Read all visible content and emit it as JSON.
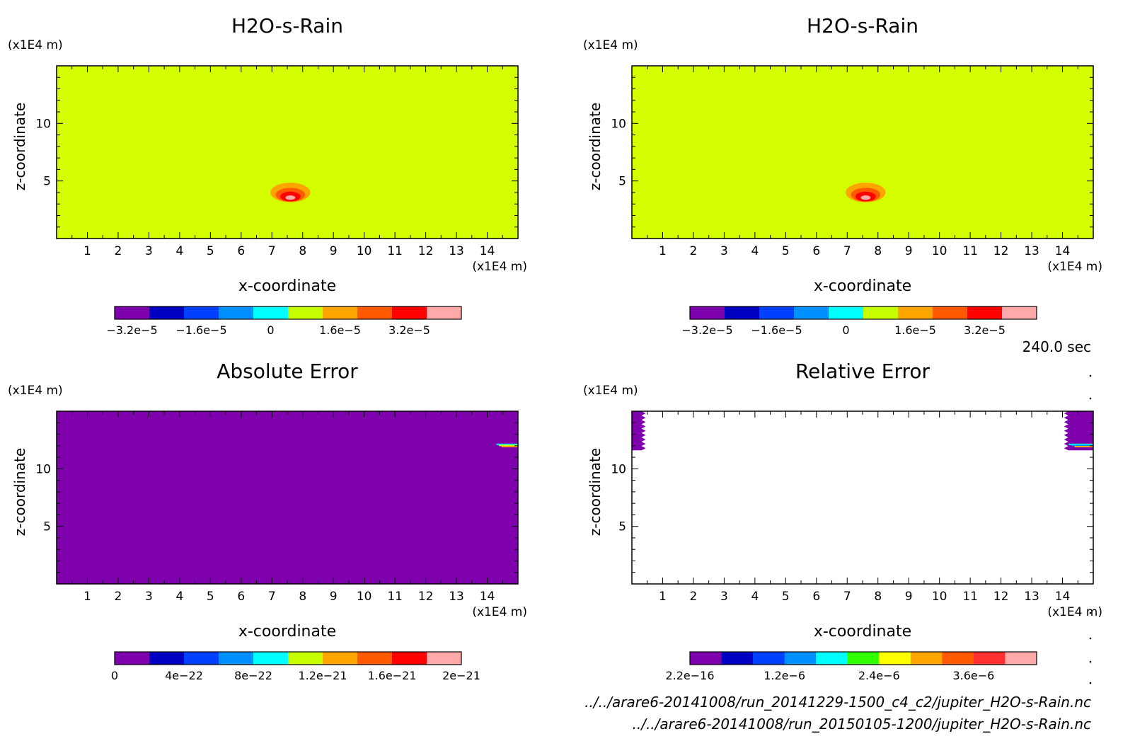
{
  "time_label": "240.0 sec",
  "footer": {
    "file1": "../../arare6-20141008/run_20141229-1500_c4_c2/jupiter_H2O-s-Rain.nc",
    "file2": "../../arare6-20141008/run_20150105-1200/jupiter_H2O-s-Rain.nc"
  },
  "chart_data": [
    {
      "type": "heatmap",
      "title": "H2O-s-Rain",
      "xlabel": "x-coordinate",
      "ylabel": "z-coordinate",
      "x_unit": "(x1E4 m)",
      "y_unit": "(x1E4 m)",
      "xlim": [
        0,
        15
      ],
      "ylim": [
        0,
        15
      ],
      "xticks": [
        "1",
        "2",
        "3",
        "4",
        "5",
        "6",
        "7",
        "8",
        "9",
        "10",
        "11",
        "12",
        "13",
        "14"
      ],
      "yticks": [
        "5",
        "10"
      ],
      "background": "#d4ff00",
      "features": [
        {
          "shape": "blob",
          "cx": 7.6,
          "cz": 4.0,
          "rx": 0.65,
          "rz": 0.85,
          "color": "#ffa500"
        },
        {
          "shape": "blob",
          "cx": 7.6,
          "cz": 3.8,
          "rx": 0.48,
          "rz": 0.6,
          "color": "#ff5a00"
        },
        {
          "shape": "blob",
          "cx": 7.6,
          "cz": 3.65,
          "rx": 0.33,
          "rz": 0.42,
          "color": "#ff0000"
        },
        {
          "shape": "blob",
          "cx": 7.6,
          "cz": 3.55,
          "rx": 0.16,
          "rz": 0.2,
          "color": "#ffaaaa"
        }
      ],
      "colorbar": {
        "colors": [
          "#7f00ad",
          "#0000c0",
          "#0040ff",
          "#0090ff",
          "#00ffff",
          "#c8ff00",
          "#ffa500",
          "#ff5a00",
          "#ff0000",
          "#ffaaaa"
        ],
        "labels": [
          "−3.2e−5",
          "−1.6e−5",
          "0",
          "1.6e−5",
          "3.2e−5"
        ],
        "label_pos": [
          0.5,
          2.5,
          4.5,
          6.5,
          8.5
        ]
      }
    },
    {
      "type": "heatmap",
      "title": "H2O-s-Rain",
      "xlabel": "x-coordinate",
      "ylabel": "z-coordinate",
      "x_unit": "(x1E4 m)",
      "y_unit": "(x1E4 m)",
      "xlim": [
        0,
        15
      ],
      "ylim": [
        0,
        15
      ],
      "xticks": [
        "1",
        "2",
        "3",
        "4",
        "5",
        "6",
        "7",
        "8",
        "9",
        "10",
        "11",
        "12",
        "13",
        "14"
      ],
      "yticks": [
        "5",
        "10"
      ],
      "background": "#d4ff00",
      "features": [
        {
          "shape": "blob",
          "cx": 7.6,
          "cz": 4.0,
          "rx": 0.65,
          "rz": 0.85,
          "color": "#ffa500"
        },
        {
          "shape": "blob",
          "cx": 7.6,
          "cz": 3.8,
          "rx": 0.48,
          "rz": 0.6,
          "color": "#ff5a00"
        },
        {
          "shape": "blob",
          "cx": 7.6,
          "cz": 3.65,
          "rx": 0.33,
          "rz": 0.42,
          "color": "#ff0000"
        },
        {
          "shape": "blob",
          "cx": 7.6,
          "cz": 3.55,
          "rx": 0.16,
          "rz": 0.2,
          "color": "#ffaaaa"
        }
      ],
      "colorbar": {
        "colors": [
          "#7f00ad",
          "#0000c0",
          "#0040ff",
          "#0090ff",
          "#00ffff",
          "#c8ff00",
          "#ffa500",
          "#ff5a00",
          "#ff0000",
          "#ffaaaa"
        ],
        "labels": [
          "−3.2e−5",
          "−1.6e−5",
          "0",
          "1.6e−5",
          "3.2e−5"
        ],
        "label_pos": [
          0.5,
          2.5,
          4.5,
          6.5,
          8.5
        ]
      }
    },
    {
      "type": "heatmap",
      "title": "Absolute Error",
      "xlabel": "x-coordinate",
      "ylabel": "z-coordinate",
      "x_unit": "(x1E4 m)",
      "y_unit": "(x1E4 m)",
      "xlim": [
        0,
        15
      ],
      "ylim": [
        0,
        15
      ],
      "xticks": [
        "1",
        "2",
        "3",
        "4",
        "5",
        "6",
        "7",
        "8",
        "9",
        "10",
        "11",
        "12",
        "13",
        "14"
      ],
      "yticks": [
        "5",
        "10"
      ],
      "background": "#7f00ad",
      "features": [
        {
          "shape": "streak",
          "x0": 14.3,
          "x1": 15.0,
          "z": 12.0,
          "colors": [
            "#00ffff",
            "#c8ff00",
            "#ffa500"
          ]
        }
      ],
      "colorbar": {
        "colors": [
          "#7f00ad",
          "#0000c0",
          "#0040ff",
          "#0090ff",
          "#00ffff",
          "#c8ff00",
          "#ffa500",
          "#ff5a00",
          "#ff0000",
          "#ffaaaa"
        ],
        "labels": [
          "0",
          "4e−22",
          "8e−22",
          "1.2e−21",
          "1.6e−21",
          "2e−21"
        ],
        "label_pos": [
          0,
          2,
          4,
          6,
          8,
          10
        ]
      }
    },
    {
      "type": "heatmap",
      "title": "Relative Error",
      "xlabel": "x-coordinate",
      "ylabel": "z-coordinate",
      "x_unit": "(x1E4 m)",
      "y_unit": "(x1E4 m)",
      "xlim": [
        0,
        15
      ],
      "ylim": [
        0,
        15
      ],
      "xticks": [
        "1",
        "2",
        "3",
        "4",
        "5",
        "6",
        "7",
        "8",
        "9",
        "10",
        "11",
        "12",
        "13",
        "14"
      ],
      "yticks": [
        "5",
        "10"
      ],
      "background": "#ffffff",
      "features": [
        {
          "shape": "jagged",
          "x0": 0.0,
          "x1": 0.45,
          "z0": 11.6,
          "z1": 15.0,
          "color": "#7f00ad",
          "side": "left"
        },
        {
          "shape": "jagged",
          "x0": 14.05,
          "x1": 15.0,
          "z0": 11.6,
          "z1": 15.0,
          "color": "#7f00ad",
          "side": "right"
        },
        {
          "shape": "streak",
          "x0": 14.2,
          "x1": 15.0,
          "z": 12.0,
          "colors": [
            "#00ffff",
            "#0090ff",
            "#ffa500"
          ]
        }
      ],
      "colorbar": {
        "colors": [
          "#7f00ad",
          "#0000c0",
          "#0040ff",
          "#0090ff",
          "#00ffff",
          "#32ff00",
          "#ffff00",
          "#ffa500",
          "#ff5a00",
          "#ff3030",
          "#ffaaaa"
        ],
        "labels": [
          "2.2e−16",
          "1.2e−6",
          "2.4e−6",
          "3.6e−6"
        ],
        "label_pos": [
          0,
          3,
          6,
          9
        ]
      }
    }
  ]
}
